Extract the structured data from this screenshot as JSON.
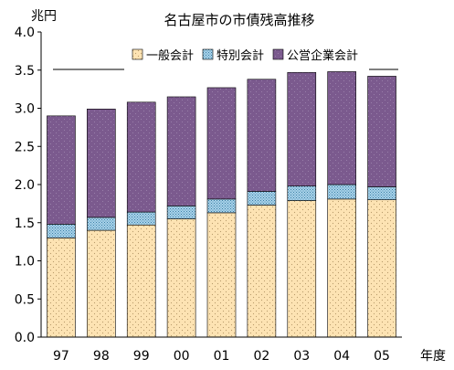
{
  "chart_data": {
    "type": "bar",
    "stacked": true,
    "title": "名古屋市の市債残高推移",
    "ylabel": "兆円",
    "xlabel": "年度",
    "ylim": [
      0,
      4.0
    ],
    "yticks": [
      "0.0",
      "0.5",
      "1.0",
      "1.5",
      "2.0",
      "2.5",
      "3.0",
      "3.5",
      "4.0"
    ],
    "categories": [
      "97",
      "98",
      "99",
      "00",
      "01",
      "02",
      "03",
      "04",
      "05"
    ],
    "series": [
      {
        "name": "一般会計",
        "color": "#fde3b3",
        "values": [
          1.3,
          1.4,
          1.47,
          1.55,
          1.63,
          1.73,
          1.79,
          1.81,
          1.8
        ]
      },
      {
        "name": "特別会計",
        "color": "#a9d3ea",
        "values": [
          0.18,
          0.17,
          0.17,
          0.17,
          0.18,
          0.18,
          0.19,
          0.19,
          0.17
        ]
      },
      {
        "name": "公営企業会計",
        "color": "#7b5a8e",
        "values": [
          1.42,
          1.42,
          1.44,
          1.43,
          1.46,
          1.47,
          1.49,
          1.48,
          1.45
        ]
      }
    ],
    "grid": false,
    "legend_position": "top"
  }
}
